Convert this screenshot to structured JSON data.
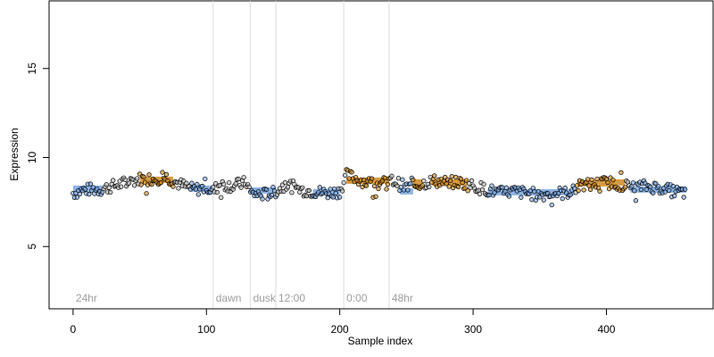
{
  "chart_data": {
    "type": "scatter",
    "xlabel": "Sample index",
    "ylabel": "Expression",
    "xlim": [
      -18,
      480
    ],
    "ylim": [
      1.5,
      18.8
    ],
    "x_ticks": [
      0,
      100,
      200,
      300,
      400
    ],
    "y_ticks": [
      5,
      10,
      15
    ],
    "annotations": [
      {
        "x": 0,
        "label": "24hr"
      },
      {
        "x": 105,
        "label": "dawn"
      },
      {
        "x": 133,
        "label": "dusk"
      },
      {
        "x": 152,
        "label": "12:00"
      },
      {
        "x": 203,
        "label": "0:00"
      },
      {
        "x": 237,
        "label": "48hr"
      }
    ],
    "series": [
      {
        "color": "#d08a20",
        "segments": [
          {
            "x": [
              50,
              75
            ],
            "y": 8.75
          },
          {
            "x": [
              205,
              237
            ],
            "y": 8.7
          },
          {
            "x": [
              255,
              262
            ],
            "y": 8.6
          },
          {
            "x": [
              269,
              296
            ],
            "y": 8.6
          },
          {
            "x": [
              378,
              406
            ],
            "y": 8.55
          },
          {
            "x": [
              404,
              414
            ],
            "y": 8.6
          }
        ]
      },
      {
        "color": "#7aa6e0",
        "segments": [
          {
            "x": [
              0,
              22
            ],
            "y": 8.25
          },
          {
            "x": [
              88,
              104
            ],
            "y": 8.25
          },
          {
            "x": [
              133,
              152
            ],
            "y": 8.15
          },
          {
            "x": [
              180,
              200
            ],
            "y": 8.05
          },
          {
            "x": [
              245,
              255
            ],
            "y": 8.1
          },
          {
            "x": [
              311,
              376
            ],
            "y": 8.05
          },
          {
            "x": [
              418,
              460
            ],
            "y": 8.2
          }
        ]
      }
    ],
    "points": {
      "count": 460,
      "y": [
        [
          0,
          8.0
        ],
        [
          10,
          8.2
        ],
        [
          20,
          8.2
        ],
        [
          30,
          8.4
        ],
        [
          40,
          8.6
        ],
        [
          50,
          8.8
        ],
        [
          60,
          8.8
        ],
        [
          70,
          8.9
        ],
        [
          80,
          8.5
        ],
        [
          90,
          8.2
        ],
        [
          100,
          8.3
        ],
        [
          105,
          8.1
        ],
        [
          110,
          8.5
        ],
        [
          120,
          8.4
        ],
        [
          130,
          8.6
        ],
        [
          133,
          8.0
        ],
        [
          140,
          7.9
        ],
        [
          150,
          8.0
        ],
        [
          160,
          8.5
        ],
        [
          170,
          8.2
        ],
        [
          180,
          8.1
        ],
        [
          190,
          8.0
        ],
        [
          200,
          8.1
        ],
        [
          205,
          9.0
        ],
        [
          210,
          8.9
        ],
        [
          220,
          8.6
        ],
        [
          230,
          8.5
        ],
        [
          240,
          8.7
        ],
        [
          250,
          8.3
        ],
        [
          260,
          8.5
        ],
        [
          270,
          8.7
        ],
        [
          280,
          8.6
        ],
        [
          290,
          8.6
        ],
        [
          300,
          8.4
        ],
        [
          310,
          8.2
        ],
        [
          320,
          8.0
        ],
        [
          330,
          8.1
        ],
        [
          340,
          8.0
        ],
        [
          350,
          7.9
        ],
        [
          360,
          8.0
        ],
        [
          370,
          8.0
        ],
        [
          380,
          8.4
        ],
        [
          390,
          8.5
        ],
        [
          400,
          8.6
        ],
        [
          410,
          8.5
        ],
        [
          420,
          8.3
        ],
        [
          430,
          8.4
        ],
        [
          440,
          8.3
        ],
        [
          450,
          8.1
        ],
        [
          460,
          8.0
        ]
      ]
    }
  }
}
